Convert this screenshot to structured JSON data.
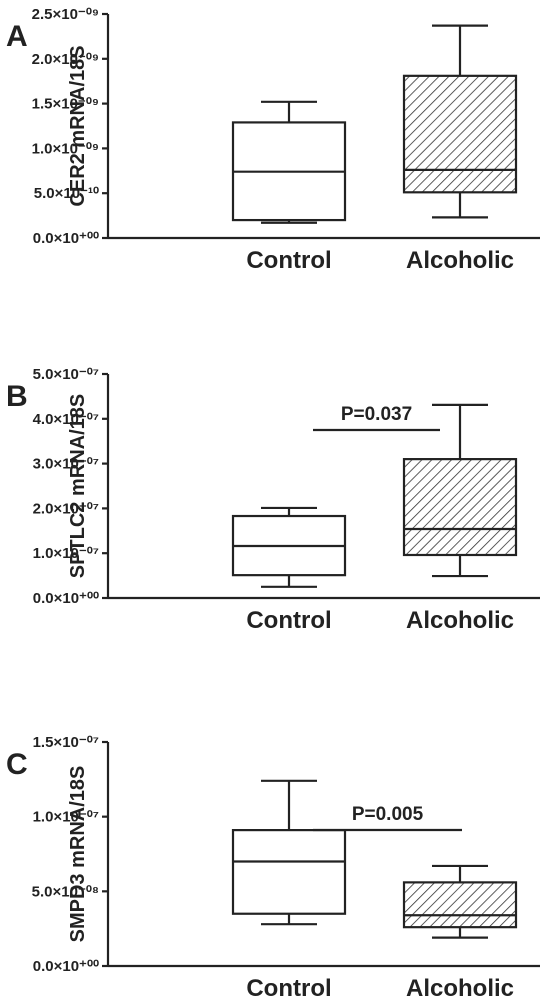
{
  "chart_data": [
    {
      "type": "box",
      "panel": "A",
      "ylabel": "CER2 mRNA/18S",
      "categories": [
        "Control",
        "Alcoholic"
      ],
      "boxes": [
        {
          "min": 1.7e-10,
          "q1": 2e-10,
          "median": 7.4e-10,
          "q3": 1.29e-09,
          "max": 1.52e-09
        },
        {
          "min": 2.3e-10,
          "q1": 5.1e-10,
          "median": 7.6e-10,
          "q3": 1.81e-09,
          "max": 2.37e-09
        }
      ],
      "fills": [
        "#ffffff",
        "hatch"
      ],
      "ylim": [
        0,
        2.5e-09
      ],
      "yticks": [
        {
          "value": 0,
          "label": "0.0×10⁺⁰⁰"
        },
        {
          "value": 5e-10,
          "label": "5.0×10⁻¹⁰"
        },
        {
          "value": 1e-09,
          "label": "1.0×10⁻⁰⁹"
        },
        {
          "value": 1.5e-09,
          "label": "1.5×10⁻⁰⁹"
        },
        {
          "value": 2e-09,
          "label": "2.0×10⁻⁰⁹"
        },
        {
          "value": 2.5e-09,
          "label": "2.5×10⁻⁰⁹"
        }
      ]
    },
    {
      "type": "box",
      "panel": "B",
      "ylabel": "SPTLC2 mRNA/18S",
      "categories": [
        "Control",
        "Alcoholic"
      ],
      "boxes": [
        {
          "min": 2.5e-08,
          "q1": 5.1e-08,
          "median": 1.16e-07,
          "q3": 1.83e-07,
          "max": 2.01e-07
        },
        {
          "min": 4.9e-08,
          "q1": 9.6e-08,
          "median": 1.54e-07,
          "q3": 3.1e-07,
          "max": 4.31e-07
        }
      ],
      "fills": [
        "#ffffff",
        "hatch"
      ],
      "annotation": "P=0.037",
      "ylim": [
        0,
        5e-07
      ],
      "yticks": [
        {
          "value": 0,
          "label": "0.0×10⁺⁰⁰"
        },
        {
          "value": 1e-07,
          "label": "1.0×10⁻⁰⁷"
        },
        {
          "value": 2e-07,
          "label": "2.0×10⁻⁰⁷"
        },
        {
          "value": 3e-07,
          "label": "3.0×10⁻⁰⁷"
        },
        {
          "value": 4e-07,
          "label": "4.0×10⁻⁰⁷"
        },
        {
          "value": 5e-07,
          "label": "5.0×10⁻⁰⁷"
        }
      ]
    },
    {
      "type": "box",
      "panel": "C",
      "ylabel": "SMPD3 mRNA/18S",
      "categories": [
        "Control",
        "Alcoholic"
      ],
      "boxes": [
        {
          "min": 2.8e-08,
          "q1": 3.5e-08,
          "median": 7e-08,
          "q3": 9.1e-08,
          "max": 1.24e-07
        },
        {
          "min": 1.9e-08,
          "q1": 2.6e-08,
          "median": 3.4e-08,
          "q3": 5.6e-08,
          "max": 6.7e-08
        }
      ],
      "fills": [
        "#ffffff",
        "hatch"
      ],
      "annotation": "P=0.005",
      "ylim": [
        0,
        1.5e-07
      ],
      "yticks": [
        {
          "value": 0,
          "label": "0.0×10⁺⁰⁰"
        },
        {
          "value": 5e-08,
          "label": "5.0×10⁻⁰⁸"
        },
        {
          "value": 1e-07,
          "label": "1.0×10⁻⁰⁷"
        },
        {
          "value": 1.5e-07,
          "label": "1.5×10⁻⁰⁷"
        }
      ]
    }
  ]
}
